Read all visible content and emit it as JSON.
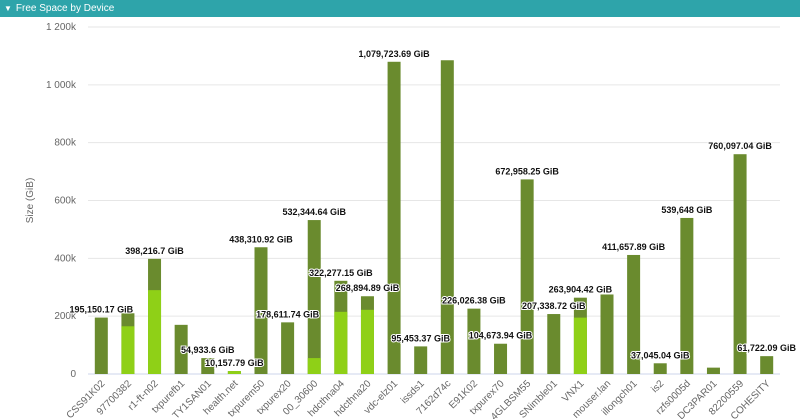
{
  "chart_data": {
    "type": "bar",
    "title": "Free Space by Device",
    "y_label": "Size (GiB)",
    "categories": [
      "CSS91K02",
      "97700382",
      "r1-ft-n02",
      "txpurefb1",
      "TY1SAN01",
      "health.net",
      "txpurem50",
      "txpurex20",
      "00_30600",
      "hdcthna04",
      "hdcthna20",
      "vdc-elz01",
      "issds1",
      "7162d74c",
      "E91K02",
      "txpurex70",
      "4GLBSM55",
      "SNimble01",
      "VNX1",
      "mouser.lan",
      "illongch01",
      "is2",
      "rzfs0005d",
      "DC3PAR01",
      "82200559",
      "COHESITY"
    ],
    "series": [
      {
        "color": "#6a8b2e",
        "values": [
          195150.17,
          210000,
          398216.7,
          170000,
          54933.6,
          10157.79,
          438310.92,
          178611.74,
          532344.64,
          322277.15,
          268894.89,
          1079723.69,
          95453.37,
          1085000,
          226026.38,
          104673.94,
          672958.25,
          207338.72,
          263904.42,
          275000,
          411657.89,
          37045.04,
          539648,
          22000,
          760097.04,
          61722.09
        ],
        "value_labels": [
          "195,150.17 GiB",
          null,
          "398,216.7 GiB",
          null,
          "54,933.6 GiB",
          "10,157.79 GiB",
          "438,310.92 GiB",
          "178,611.74 GiB",
          "532,344.64 GiB",
          "322,277.15 GiB",
          "268,894.89 GiB",
          "1,079,723.69 GiB",
          "95,453.37 GiB",
          null,
          "226,026.38 GiB",
          "104,673.94 GiB",
          "672,958.25 GiB",
          "207,338.72 GiB",
          "263,904.42 GiB",
          null,
          "411,657.89 GiB",
          "37,045.04 GiB",
          "539,648 GiB",
          null,
          "760,097.04 GiB",
          "61,722.09 GiB"
        ]
      },
      {
        "color": "#8fd017",
        "values": [
          null,
          165000,
          290000,
          null,
          null,
          10157.79,
          null,
          null,
          55000,
          215000,
          222000,
          null,
          null,
          null,
          null,
          null,
          null,
          null,
          195000,
          null,
          null,
          null,
          null,
          null,
          null,
          null
        ]
      }
    ],
    "ylim": [
      0,
      1200000
    ],
    "yticks": [
      0,
      {
        "value": 200000,
        "label": "200k"
      },
      {
        "value": 400000,
        "label": "400k"
      },
      {
        "value": 600000,
        "label": "600k"
      },
      {
        "value": 800000,
        "label": "800k"
      },
      {
        "value": 1000000,
        "label": "1 000k"
      },
      {
        "value": 1200000,
        "label": "1 200k"
      }
    ],
    "grid": true
  }
}
